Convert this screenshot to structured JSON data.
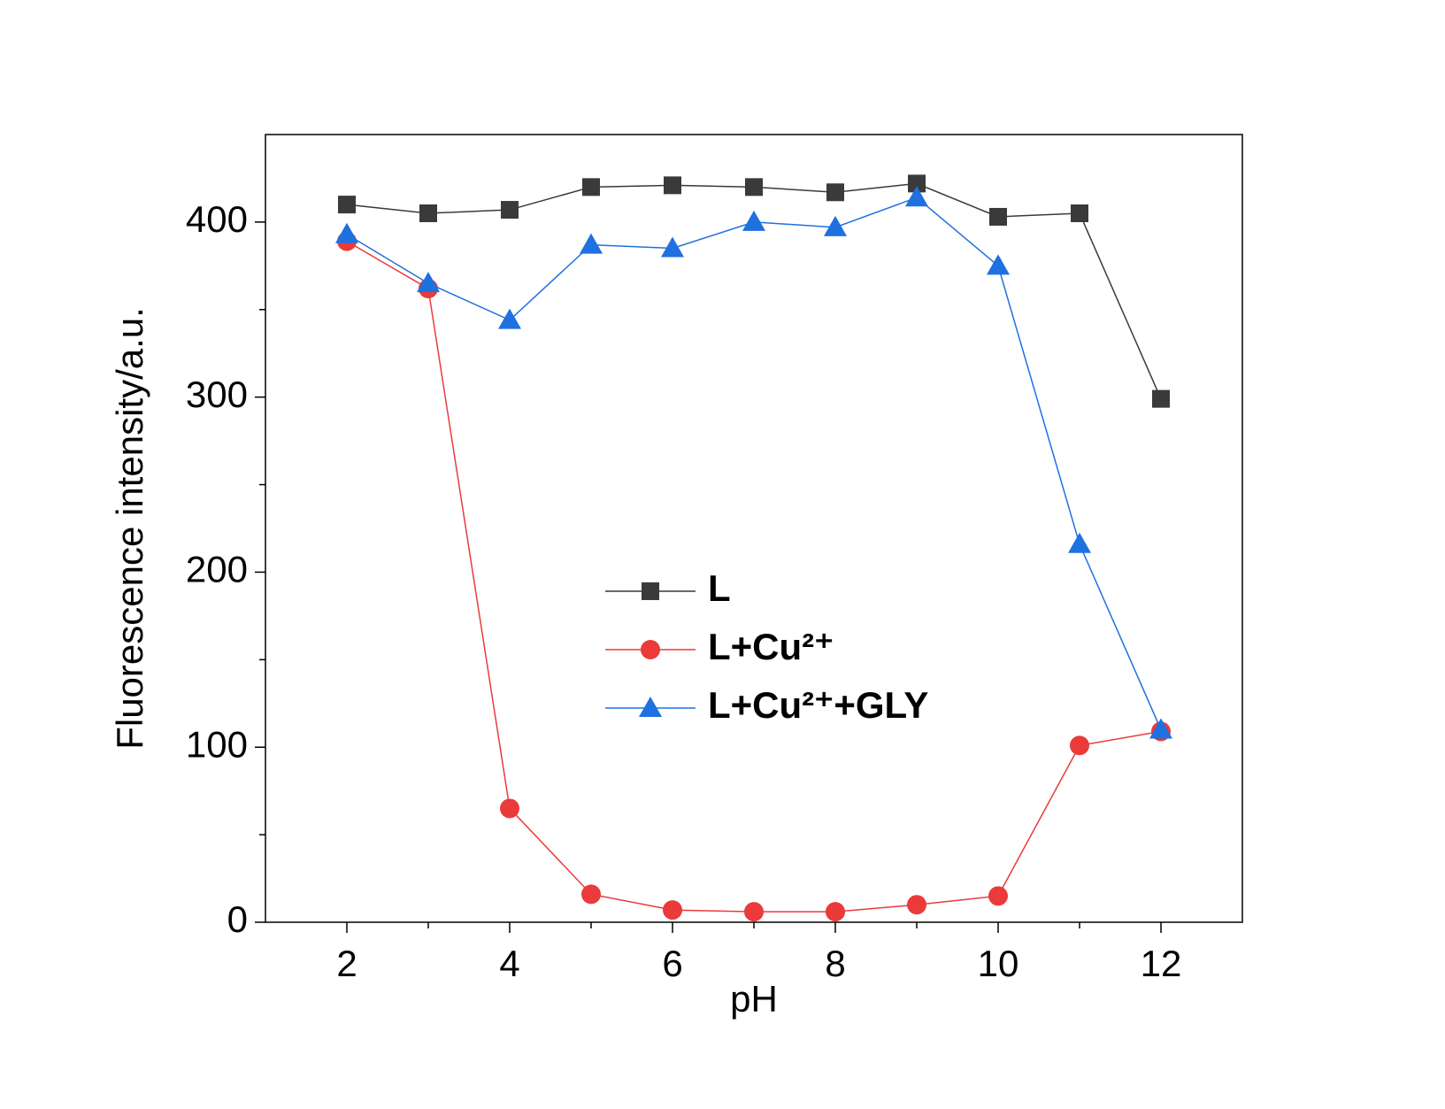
{
  "chart_data": {
    "type": "line",
    "x_label": "pH",
    "y_label": "Fluorescence intensity/a.u.",
    "x": [
      2,
      3,
      4,
      5,
      6,
      7,
      8,
      9,
      10,
      11,
      12
    ],
    "series": [
      {
        "name": "L",
        "color": "#3a3a3a",
        "marker": "square",
        "values": [
          410,
          405,
          407,
          420,
          421,
          420,
          417,
          422,
          403,
          405,
          299
        ]
      },
      {
        "name": "L+Cu²⁺",
        "color": "#ea3a3a",
        "marker": "circle",
        "values": [
          389,
          362,
          65,
          16,
          7,
          6,
          6,
          10,
          15,
          101,
          109
        ]
      },
      {
        "name": "L+Cu²⁺+GLY",
        "color": "#1f70e0",
        "marker": "triangle",
        "values": [
          393,
          365,
          344,
          387,
          385,
          400,
          397,
          414,
          375,
          216,
          110
        ]
      }
    ],
    "xlim": [
      1,
      13
    ],
    "xticks": [
      2,
      4,
      6,
      8,
      10,
      12
    ],
    "x_minor_ticks": [
      3,
      5,
      7,
      9,
      11
    ],
    "ylim": [
      0,
      450
    ],
    "yticks": [
      0,
      100,
      200,
      300,
      400
    ],
    "y_minor_ticks": [
      50,
      150,
      250,
      350
    ]
  }
}
